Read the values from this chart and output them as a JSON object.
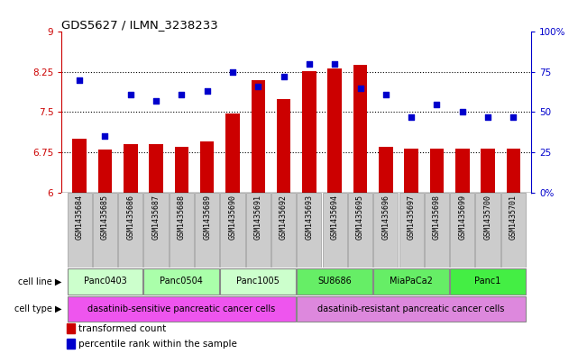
{
  "title": "GDS5627 / ILMN_3238233",
  "samples": [
    "GSM1435684",
    "GSM1435685",
    "GSM1435686",
    "GSM1435687",
    "GSM1435688",
    "GSM1435689",
    "GSM1435690",
    "GSM1435691",
    "GSM1435692",
    "GSM1435693",
    "GSM1435694",
    "GSM1435695",
    "GSM1435696",
    "GSM1435697",
    "GSM1435698",
    "GSM1435699",
    "GSM1435700",
    "GSM1435701"
  ],
  "bar_values": [
    7.0,
    6.8,
    6.9,
    6.9,
    6.85,
    6.95,
    7.47,
    8.1,
    7.75,
    8.27,
    8.31,
    8.38,
    6.85,
    6.82,
    6.82,
    6.82,
    6.82,
    6.82
  ],
  "dot_values": [
    70,
    35,
    61,
    57,
    61,
    63,
    75,
    66,
    72,
    80,
    80,
    65,
    61,
    47,
    55,
    50,
    47,
    47
  ],
  "bar_color": "#cc0000",
  "dot_color": "#0000cc",
  "ylim_left": [
    6,
    9
  ],
  "ylim_right": [
    0,
    100
  ],
  "yticks_left": [
    6,
    6.75,
    7.5,
    8.25,
    9
  ],
  "ytick_labels_left": [
    "6",
    "6.75",
    "7.5",
    "8.25",
    "9"
  ],
  "yticks_right": [
    0,
    25,
    50,
    75,
    100
  ],
  "ytick_labels_right": [
    "0%",
    "25",
    "50",
    "75",
    "100%"
  ],
  "grid_lines": [
    6.75,
    7.5,
    8.25
  ],
  "cell_lines": [
    {
      "label": "Panc0403",
      "start": 0,
      "end": 2,
      "color": "#ccffcc"
    },
    {
      "label": "Panc0504",
      "start": 3,
      "end": 5,
      "color": "#aaffaa"
    },
    {
      "label": "Panc1005",
      "start": 6,
      "end": 8,
      "color": "#ccffcc"
    },
    {
      "label": "SU8686",
      "start": 9,
      "end": 11,
      "color": "#66ee66"
    },
    {
      "label": "MiaPaCa2",
      "start": 12,
      "end": 14,
      "color": "#66ee66"
    },
    {
      "label": "Panc1",
      "start": 15,
      "end": 17,
      "color": "#44ee44"
    }
  ],
  "cell_types": [
    {
      "label": "dasatinib-sensitive pancreatic cancer cells",
      "start": 0,
      "end": 8,
      "color": "#ee55ee"
    },
    {
      "label": "dasatinib-resistant pancreatic cancer cells",
      "start": 9,
      "end": 17,
      "color": "#dd88dd"
    }
  ],
  "legend_items": [
    {
      "label": "transformed count",
      "color": "#cc0000"
    },
    {
      "label": "percentile rank within the sample",
      "color": "#0000cc"
    }
  ],
  "cell_line_label": "cell line",
  "cell_type_label": "cell type",
  "bg_color": "#ffffff",
  "sample_box_color": "#cccccc"
}
